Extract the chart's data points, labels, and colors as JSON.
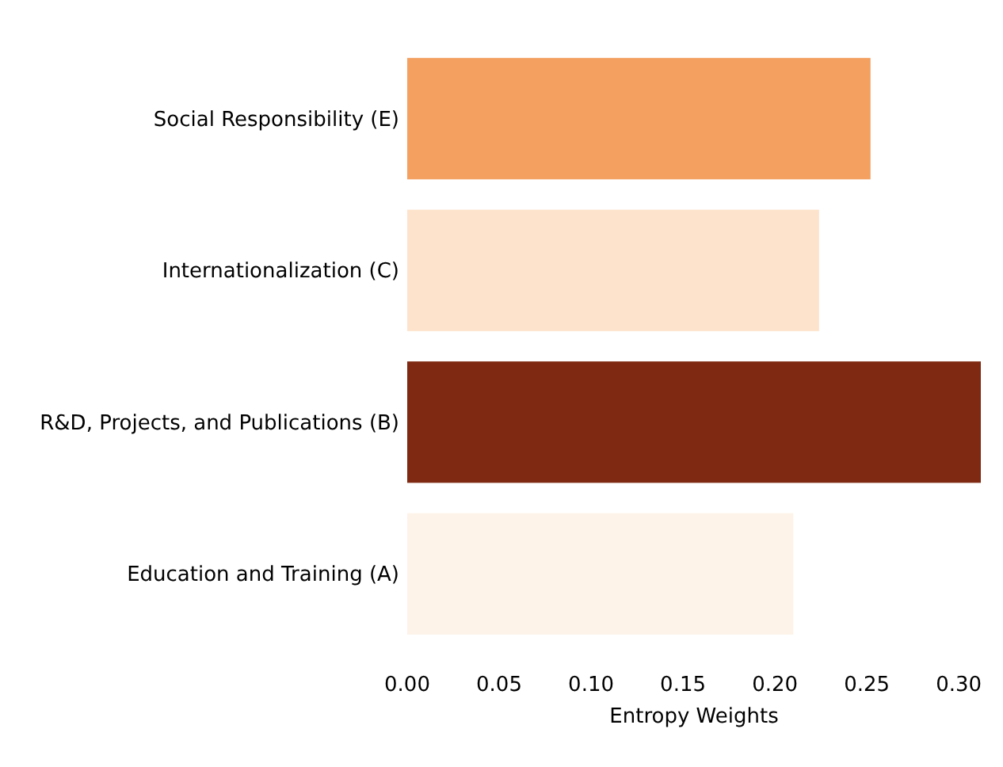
{
  "chart_data": {
    "type": "bar",
    "orientation": "horizontal",
    "xlabel": "Entropy Weights",
    "categories": [
      "Social Responsibility (E)",
      "Internationalization (C)",
      "R&D, Projects, and Publications (B)",
      "Education and Training (A)"
    ],
    "values": [
      0.252,
      0.224,
      0.312,
      0.21
    ],
    "colors": [
      "#f4a060",
      "#fde3cb",
      "#7f2912",
      "#fef3e8"
    ],
    "xlim": [
      0,
      0.312
    ],
    "xticks": [
      {
        "value": 0,
        "label": "0.00"
      },
      {
        "value": 0.05,
        "label": "0.05"
      },
      {
        "value": 0.1,
        "label": "0.10"
      },
      {
        "value": 0.15,
        "label": "0.15"
      },
      {
        "value": 0.2,
        "label": "0.20"
      },
      {
        "value": 0.25,
        "label": "0.25"
      },
      {
        "value": 0.3,
        "label": "0.30"
      }
    ],
    "grid": false
  }
}
